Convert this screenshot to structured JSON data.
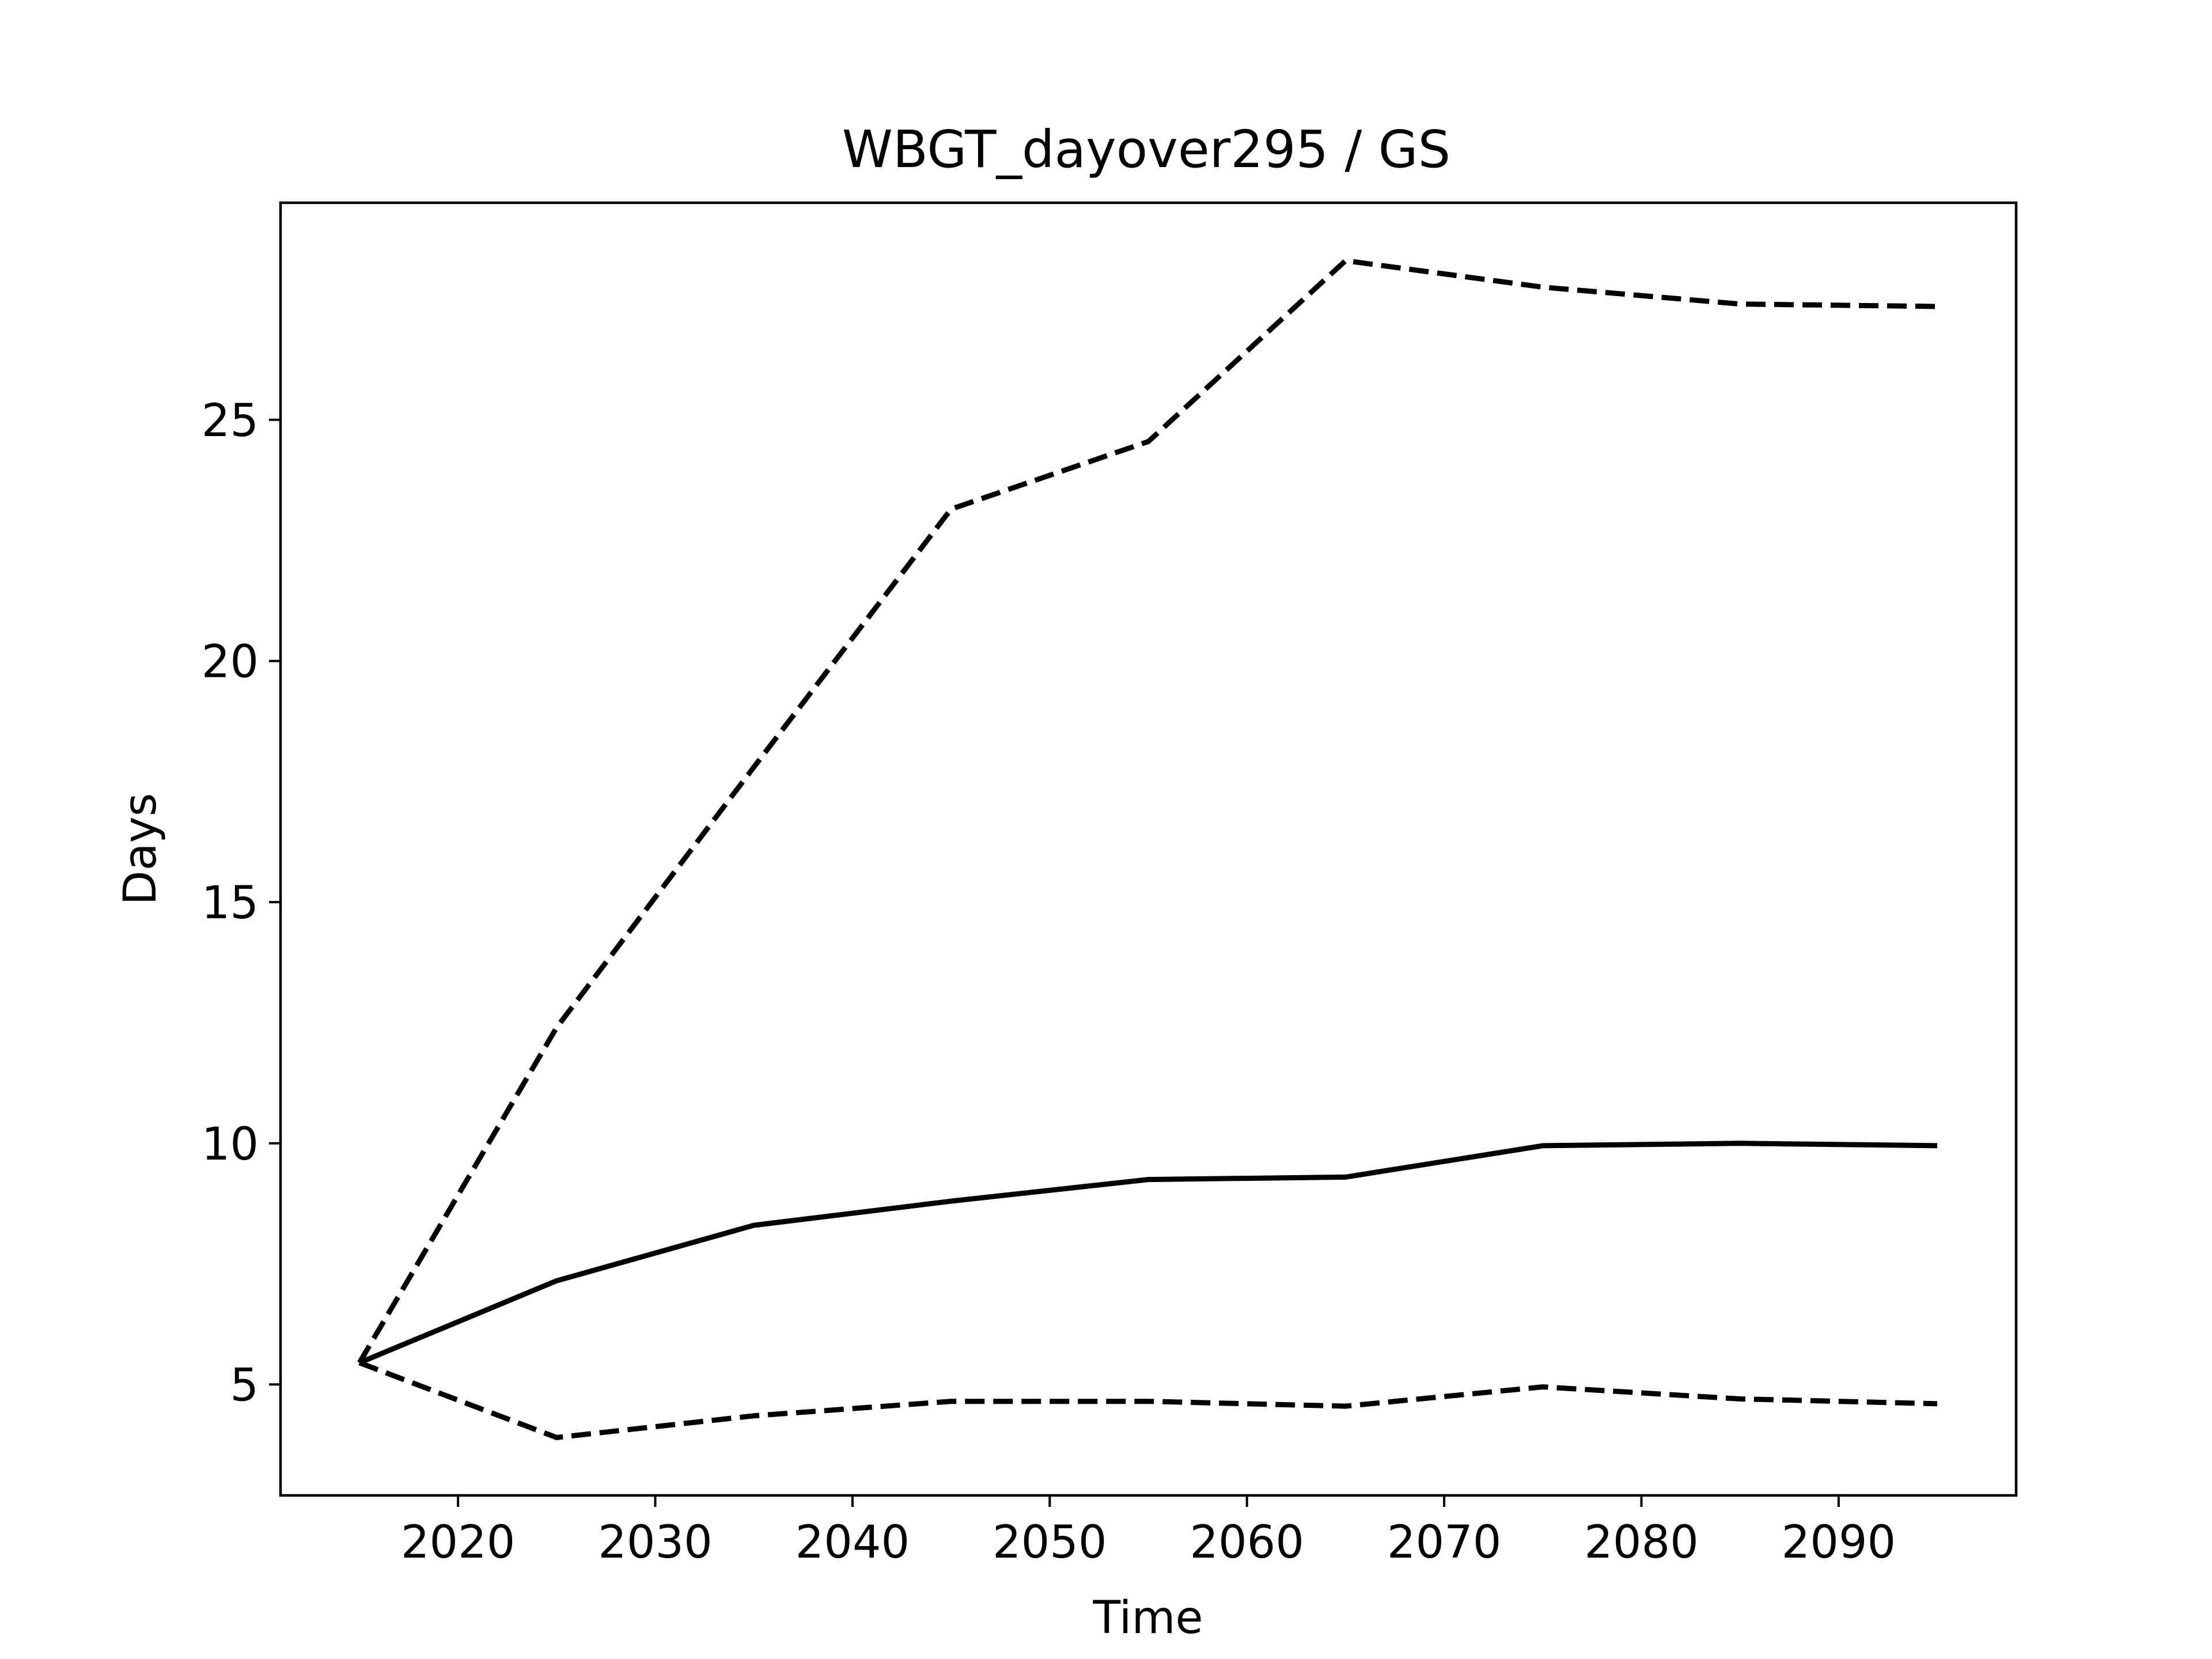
{
  "chart_data": {
    "type": "line",
    "title": "WBGT_dayover295 / GS",
    "xlabel": "Time",
    "ylabel": "Days",
    "x": [
      2015,
      2025,
      2035,
      2045,
      2055,
      2065,
      2075,
      2085,
      2095
    ],
    "xlim": [
      2011.0,
      2099.0
    ],
    "ylim": [
      2.7,
      29.5
    ],
    "xticks": [
      2020,
      2030,
      2040,
      2050,
      2060,
      2070,
      2080,
      2090
    ],
    "yticks": [
      5,
      10,
      15,
      20,
      25
    ],
    "grid": false,
    "series": [
      {
        "values": [
          5.45,
          3.9,
          4.35,
          4.65,
          4.65,
          4.55,
          4.95,
          4.7,
          4.6
        ],
        "style": "dashed",
        "color": "#000000"
      },
      {
        "values": [
          5.45,
          7.15,
          8.3,
          8.8,
          9.25,
          9.3,
          9.95,
          10.0,
          9.95
        ],
        "style": "solid",
        "color": "#000000"
      },
      {
        "values": [
          5.45,
          12.4,
          17.8,
          23.15,
          24.55,
          28.3,
          27.75,
          27.4,
          27.35
        ],
        "style": "dashed",
        "color": "#000000"
      }
    ]
  }
}
